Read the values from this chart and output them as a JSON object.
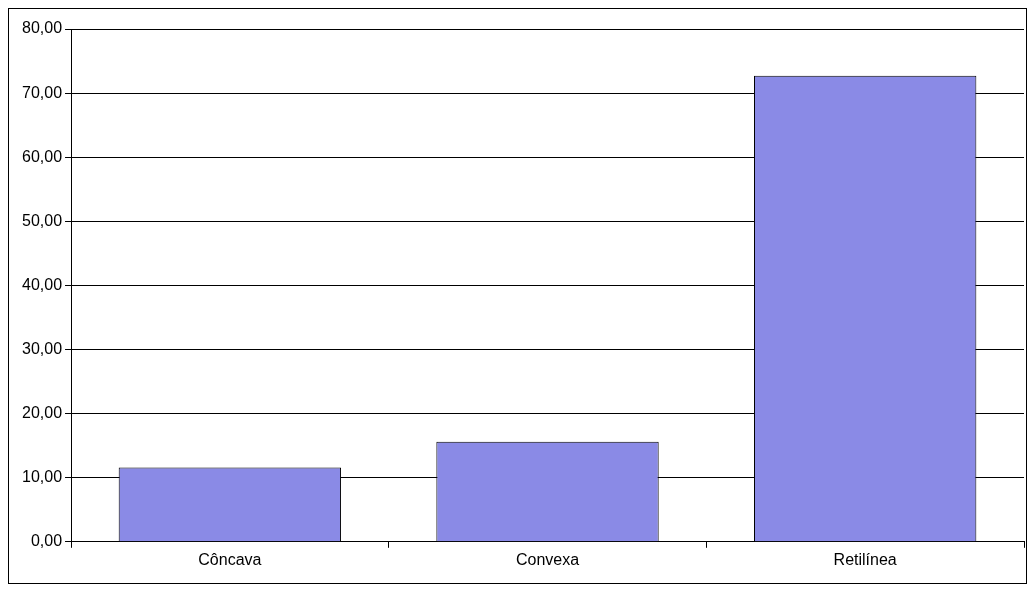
{
  "chart_data": {
    "type": "bar",
    "categories": [
      "Côncava",
      "Convexa",
      "Retilínea"
    ],
    "values": [
      11.6,
      15.6,
      72.7
    ],
    "color": "#8a8ae6",
    "ylim": [
      0,
      80
    ],
    "yticks": [
      {
        "value": 0,
        "label": "0,00"
      },
      {
        "value": 10,
        "label": "10,00"
      },
      {
        "value": 20,
        "label": "20,00"
      },
      {
        "value": 30,
        "label": "30,00"
      },
      {
        "value": 40,
        "label": "40,00"
      },
      {
        "value": 50,
        "label": "50,00"
      },
      {
        "value": 60,
        "label": "60,00"
      },
      {
        "value": 70,
        "label": "70,00"
      },
      {
        "value": 80,
        "label": "80,00"
      }
    ],
    "grid": "y",
    "legend": false
  }
}
